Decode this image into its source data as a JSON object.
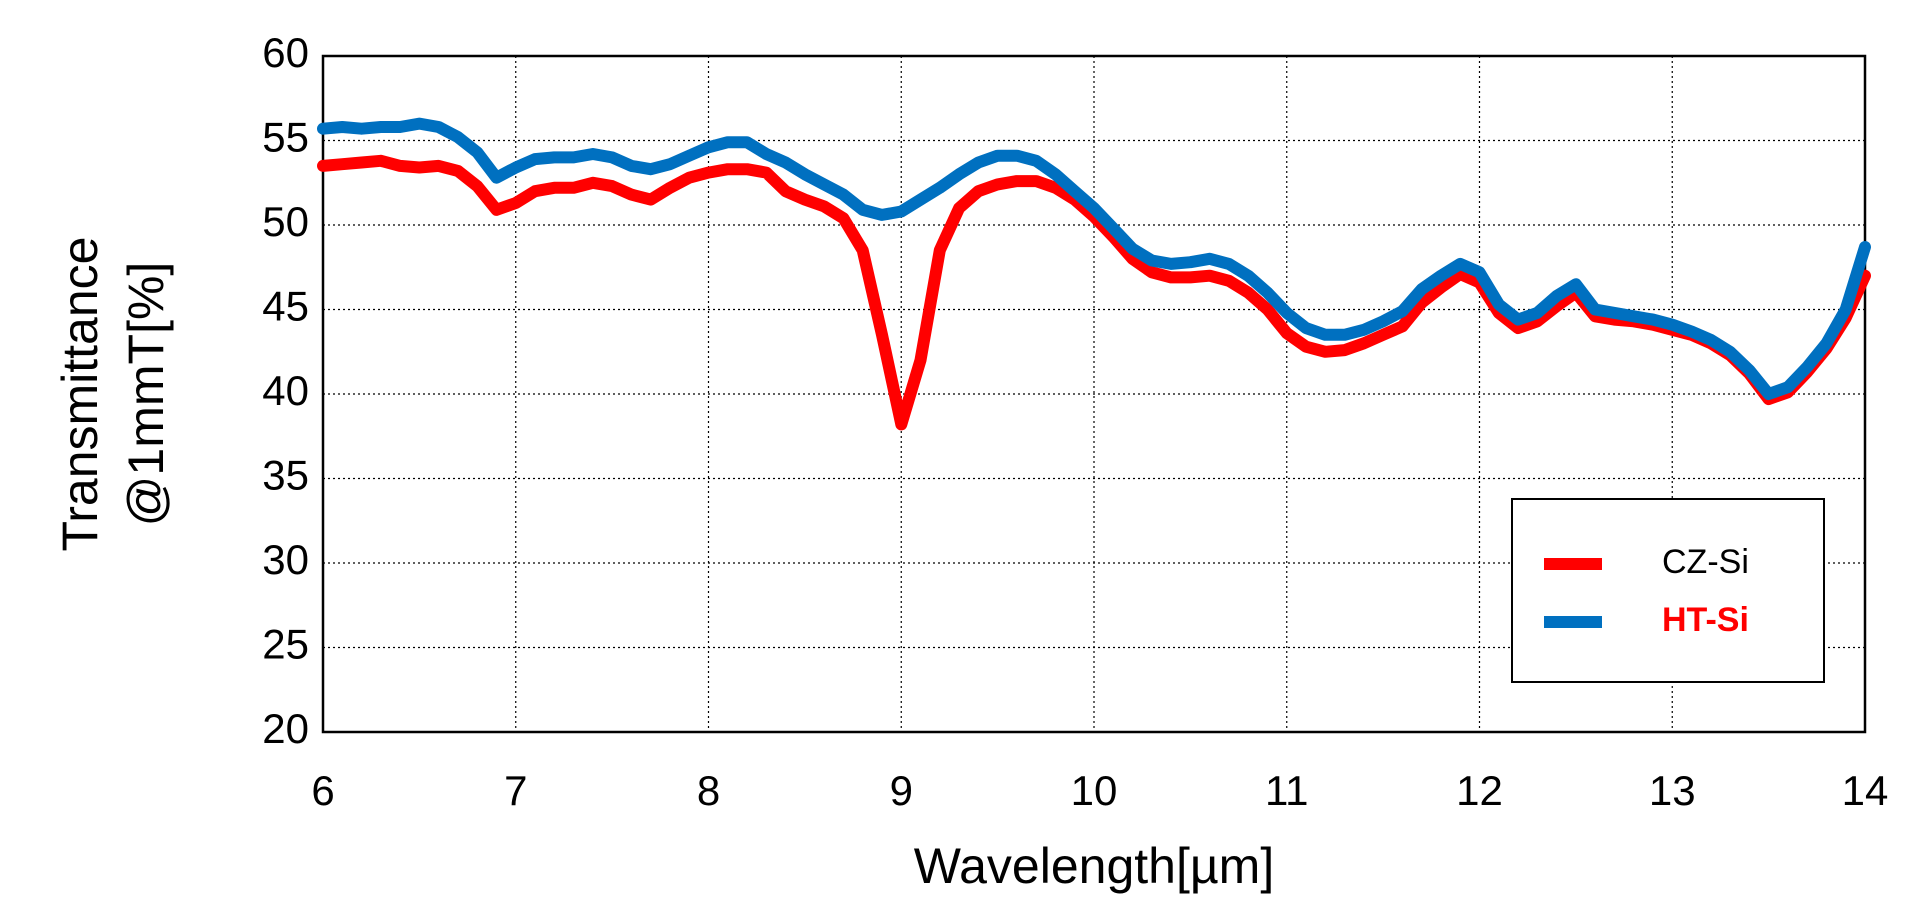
{
  "chart_data": {
    "type": "line",
    "xlabel": "Wavelength[µm]",
    "ylabel": [
      "Transmittance",
      "@1mmT[%]"
    ],
    "x": [
      6.0,
      6.1,
      6.2,
      6.3,
      6.4,
      6.5,
      6.6,
      6.7,
      6.8,
      6.9,
      7.0,
      7.1,
      7.2,
      7.3,
      7.4,
      7.5,
      7.6,
      7.7,
      7.8,
      7.9,
      8.0,
      8.1,
      8.2,
      8.3,
      8.4,
      8.5,
      8.6,
      8.7,
      8.8,
      8.9,
      9.0,
      9.1,
      9.2,
      9.3,
      9.4,
      9.5,
      9.6,
      9.7,
      9.8,
      9.9,
      10.0,
      10.1,
      10.2,
      10.3,
      10.4,
      10.5,
      10.6,
      10.7,
      10.8,
      10.9,
      11.0,
      11.1,
      11.2,
      11.3,
      11.4,
      11.5,
      11.6,
      11.7,
      11.8,
      11.9,
      12.0,
      12.1,
      12.2,
      12.3,
      12.4,
      12.5,
      12.6,
      12.7,
      12.8,
      12.9,
      13.0,
      13.1,
      13.2,
      13.3,
      13.4,
      13.5,
      13.6,
      13.7,
      13.8,
      13.9,
      14.0
    ],
    "series": [
      {
        "name": "CZ-Si",
        "color": "#ff0000",
        "label_color": "#000000",
        "label_bold": false,
        "values": [
          53.5,
          53.6,
          53.7,
          53.8,
          53.5,
          53.4,
          53.5,
          53.2,
          52.3,
          50.9,
          51.3,
          52.0,
          52.2,
          52.2,
          52.5,
          52.3,
          51.8,
          51.5,
          52.2,
          52.8,
          53.1,
          53.3,
          53.3,
          53.1,
          52.0,
          51.5,
          51.1,
          50.4,
          48.5,
          43.5,
          38.2,
          42.0,
          48.5,
          51.0,
          52.0,
          52.4,
          52.6,
          52.6,
          52.2,
          51.5,
          50.5,
          49.3,
          48.0,
          47.2,
          46.9,
          46.9,
          47.0,
          46.7,
          46.0,
          45.0,
          43.6,
          42.8,
          42.5,
          42.6,
          43.0,
          43.5,
          44.0,
          45.4,
          46.3,
          47.1,
          46.6,
          44.8,
          43.9,
          44.3,
          45.2,
          46.0,
          44.6,
          44.4,
          44.3,
          44.1,
          43.8,
          43.5,
          43.0,
          42.3,
          41.2,
          39.7,
          40.1,
          41.3,
          42.7,
          44.5,
          47.0
        ]
      },
      {
        "name": "HT-Si",
        "color": "#0070c0",
        "label_color": "#ff0000",
        "label_bold": true,
        "values": [
          55.7,
          55.8,
          55.7,
          55.8,
          55.8,
          56.0,
          55.8,
          55.2,
          54.3,
          52.8,
          53.4,
          53.9,
          54.0,
          54.0,
          54.2,
          54.0,
          53.5,
          53.3,
          53.6,
          54.1,
          54.6,
          54.9,
          54.9,
          54.2,
          53.7,
          53.0,
          52.4,
          51.8,
          50.9,
          50.6,
          50.8,
          51.5,
          52.2,
          53.0,
          53.7,
          54.1,
          54.1,
          53.8,
          53.0,
          52.0,
          51.0,
          49.8,
          48.6,
          47.9,
          47.7,
          47.8,
          48.0,
          47.7,
          47.0,
          46.0,
          44.8,
          43.9,
          43.5,
          43.5,
          43.8,
          44.3,
          44.9,
          46.2,
          47.0,
          47.7,
          47.2,
          45.3,
          44.4,
          44.8,
          45.8,
          46.5,
          45.0,
          44.8,
          44.6,
          44.4,
          44.1,
          43.7,
          43.2,
          42.5,
          41.4,
          40.0,
          40.4,
          41.6,
          43.0,
          45.0,
          48.7
        ]
      }
    ],
    "xlim": [
      6,
      14
    ],
    "xticks": [
      6,
      7,
      8,
      9,
      10,
      11,
      12,
      13,
      14
    ],
    "ylim": [
      20,
      60
    ],
    "yticks": [
      20,
      25,
      30,
      35,
      40,
      45,
      50,
      55,
      60
    ],
    "grid": true,
    "legend": "lower right"
  }
}
